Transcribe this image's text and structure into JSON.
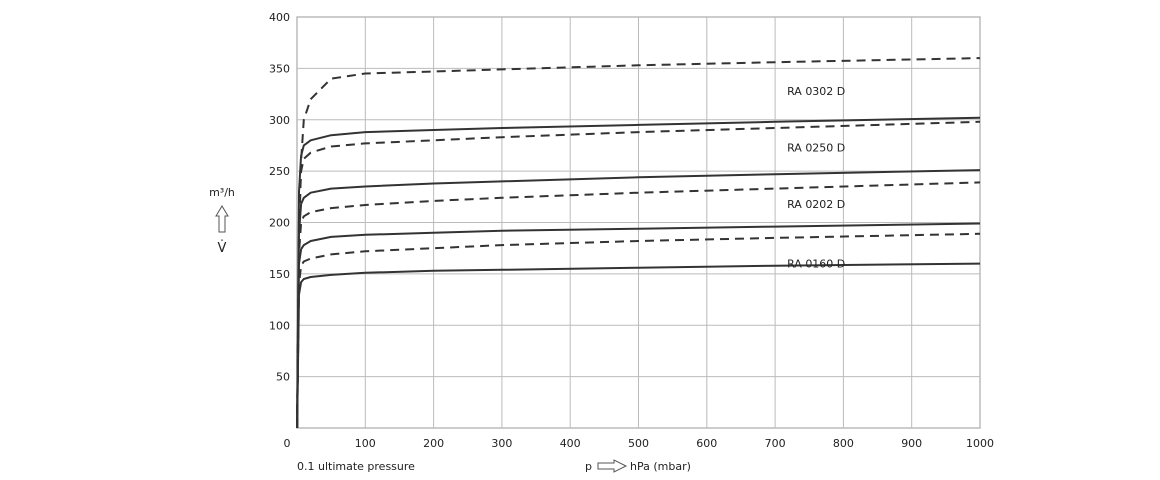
{
  "chart_data": {
    "type": "line",
    "xlabel": "p",
    "xunit": "hPa (mbar)",
    "ylabel": "V̇",
    "yunit": "m³/h",
    "x_note": "0.1 ultimate pressure",
    "xlim": [
      0,
      1000
    ],
    "ylim": [
      0,
      400
    ],
    "xticks": [
      0,
      100,
      200,
      300,
      400,
      500,
      600,
      700,
      800,
      900,
      1000
    ],
    "yticks": [
      50,
      100,
      150,
      200,
      250,
      300,
      350,
      400
    ],
    "grid": true,
    "line_color": "#333333",
    "grid_color": "#bbbbbb",
    "x": [
      0.1,
      3,
      6,
      10,
      20,
      50,
      100,
      200,
      300,
      500,
      700,
      1000
    ],
    "series": [
      {
        "style": "dashed",
        "values": [
          0,
          180,
          260,
          300,
          320,
          340,
          345,
          347,
          349,
          353,
          356,
          360
        ]
      },
      {
        "style": "solid",
        "values": [
          0,
          230,
          265,
          275,
          280,
          285,
          288,
          290,
          292,
          295,
          298,
          302
        ]
      },
      {
        "style": "dashed",
        "values": [
          0,
          200,
          250,
          262,
          268,
          274,
          277,
          280,
          283,
          288,
          292,
          298
        ]
      },
      {
        "style": "solid",
        "values": [
          0,
          190,
          218,
          224,
          229,
          233,
          235,
          238,
          240,
          244,
          247,
          251
        ]
      },
      {
        "style": "dashed",
        "values": [
          0,
          170,
          200,
          206,
          210,
          214,
          217,
          221,
          224,
          229,
          233,
          239
        ]
      },
      {
        "style": "solid",
        "values": [
          0,
          160,
          174,
          178,
          182,
          186,
          188,
          190,
          192,
          194,
          196,
          199
        ]
      },
      {
        "style": "dashed",
        "values": [
          0,
          140,
          158,
          162,
          165,
          169,
          172,
          175,
          178,
          182,
          185,
          189
        ]
      },
      {
        "style": "solid",
        "values": [
          0,
          130,
          142,
          145,
          147,
          149,
          151,
          153,
          154,
          156,
          158,
          160
        ]
      }
    ],
    "annotations": [
      {
        "text": "RA 0302 D",
        "x": 700,
        "y": 328
      },
      {
        "text": "RA 0250 D",
        "x": 700,
        "y": 273
      },
      {
        "text": "RA 0202 D",
        "x": 700,
        "y": 218
      },
      {
        "text": "RA 0160 D",
        "x": 700,
        "y": 160
      }
    ]
  }
}
